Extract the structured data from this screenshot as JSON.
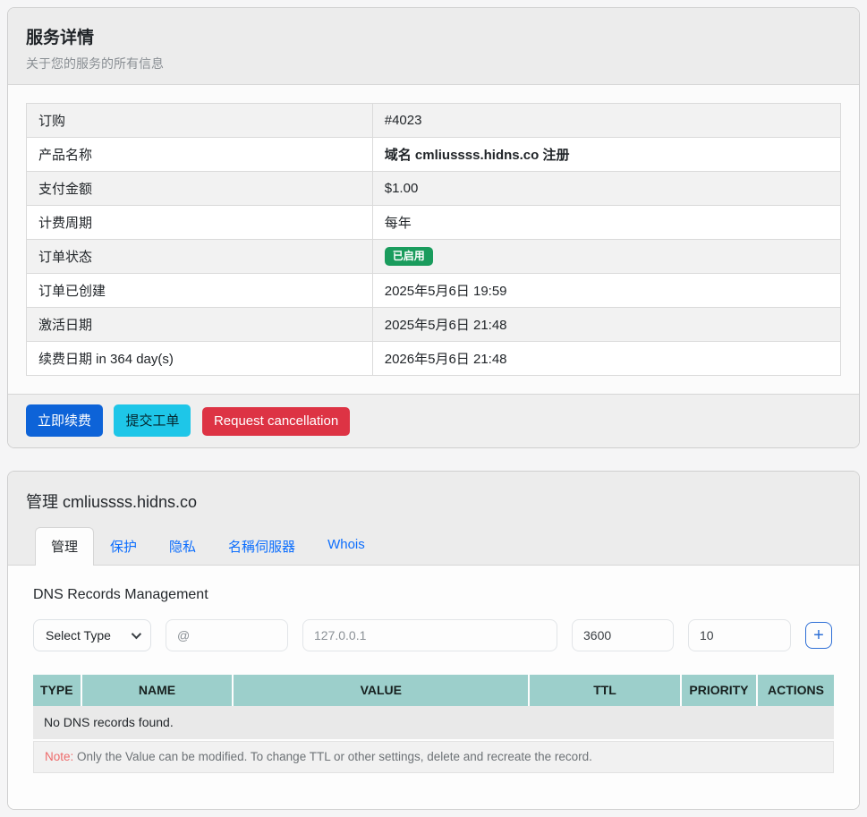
{
  "service_panel": {
    "title": "服务详情",
    "subtitle": "关于您的服务的所有信息",
    "rows": [
      {
        "label": "订购",
        "value": "#4023"
      },
      {
        "label": "产品名称",
        "value": "域名 cmliussss.hidns.co 注册"
      },
      {
        "label": "支付金额",
        "value": "$1.00"
      },
      {
        "label": "计费周期",
        "value": "每年"
      },
      {
        "label": "订单状态",
        "value": "已启用"
      },
      {
        "label": "订单已创建",
        "value": "2025年5月6日 19:59"
      },
      {
        "label": "激活日期",
        "value": "2025年5月6日 21:48"
      },
      {
        "label": "续费日期 in 364 day(s)",
        "value": "2026年5月6日 21:48"
      }
    ],
    "buttons": {
      "renew": "立即续费",
      "ticket": "提交工单",
      "cancel": "Request cancellation"
    }
  },
  "manage_panel": {
    "title": "管理 cmliussss.hidns.co",
    "tabs": [
      {
        "label": "管理"
      },
      {
        "label": "保护"
      },
      {
        "label": "隐私"
      },
      {
        "label": "名稱伺服器"
      },
      {
        "label": "Whois"
      }
    ],
    "dns": {
      "heading": "DNS Records Management",
      "form": {
        "type_select_label": "Select Type",
        "name_placeholder": "@",
        "value_placeholder": "127.0.0.1",
        "ttl_value": "3600",
        "priority_value": "10",
        "add_label": "+"
      },
      "table": {
        "headers": [
          "TYPE",
          "NAME",
          "VALUE",
          "TTL",
          "PRIORITY",
          "ACTIONS"
        ],
        "empty_message": "No DNS records found.",
        "note_label": "Note:",
        "note_text": " Only the Value can be modified. To change TTL or other settings, delete and recreate the record."
      }
    }
  },
  "colors": {
    "accent_blue": "#0d6efd",
    "badge_green": "#1a9c5d",
    "btn_primary": "#0d63d8",
    "btn_info": "#1ec6e8",
    "btn_danger": "#dd3344",
    "table_header_teal": "#9ccfcb",
    "note_red": "#ee6a6a"
  }
}
